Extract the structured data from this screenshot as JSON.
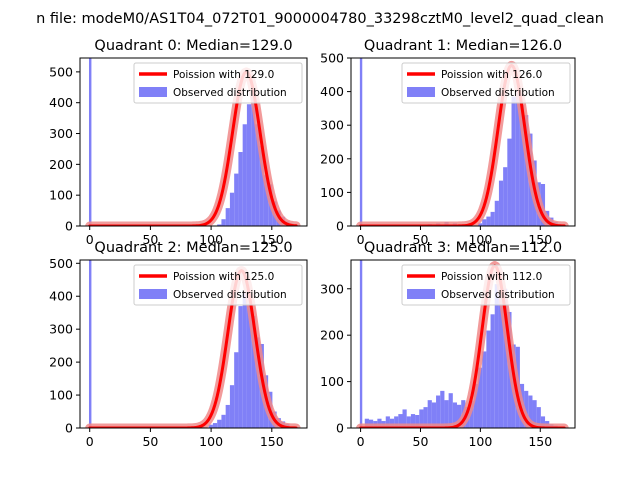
{
  "figure": {
    "suptitle": "n file: modeM0/AS1T04_072T01_9000004780_33298cztM0_level2_quad_clean",
    "colors": {
      "hist": "#8080f7",
      "poisson": "#ff0000",
      "poisson_glow": "#f08a8a",
      "axis": "#000000"
    }
  },
  "chart_data": [
    {
      "type": "bar+line",
      "title": "Quadrant 0: Median=129.0",
      "median": 129.0,
      "poisson_mean": 129.0,
      "legend": [
        "Poission with 129.0",
        "Observed distribution"
      ],
      "legend_loc": "upper right",
      "xlim": [
        -8,
        179
      ],
      "ylim": [
        0,
        545
      ],
      "xticks": [
        0,
        50,
        100,
        150
      ],
      "yticks": [
        0,
        100,
        200,
        300,
        400,
        500
      ],
      "bin_width": 3.5,
      "spike": {
        "x": 0,
        "height": 545
      },
      "bars": [
        [
          105,
          5
        ],
        [
          108.5,
          22
        ],
        [
          112,
          58
        ],
        [
          115.5,
          108
        ],
        [
          119,
          170
        ],
        [
          122.5,
          240
        ],
        [
          126,
          330
        ],
        [
          129.5,
          395
        ],
        [
          133,
          420
        ],
        [
          136.5,
          330
        ],
        [
          140,
          260
        ],
        [
          143.5,
          165
        ],
        [
          147,
          135
        ],
        [
          150.5,
          80
        ],
        [
          154,
          50
        ],
        [
          157.5,
          30
        ],
        [
          161,
          15
        ],
        [
          164.5,
          8
        ],
        [
          168,
          4
        ]
      ],
      "poisson_peak": 500
    },
    {
      "type": "bar+line",
      "title": "Quadrant 1: Median=126.0",
      "median": 126.0,
      "poisson_mean": 126.0,
      "legend": [
        "Poission with 126.0",
        "Observed distribution"
      ],
      "legend_loc": "upper right",
      "xlim": [
        -8,
        179
      ],
      "ylim": [
        0,
        500
      ],
      "xticks": [
        0,
        50,
        100,
        150
      ],
      "yticks": [
        0,
        100,
        200,
        300,
        400,
        500
      ],
      "bin_width": 3.5,
      "spike": {
        "x": 0,
        "height": 500
      },
      "bars": [
        [
          14,
          4
        ],
        [
          56,
          6
        ],
        [
          63,
          8
        ],
        [
          70,
          12
        ],
        [
          77,
          8
        ],
        [
          84,
          5
        ],
        [
          98,
          8
        ],
        [
          101.5,
          20
        ],
        [
          105,
          28
        ],
        [
          108.5,
          42
        ],
        [
          112,
          75
        ],
        [
          115.5,
          135
        ],
        [
          119,
          175
        ],
        [
          122.5,
          260
        ],
        [
          126,
          385
        ],
        [
          129.5,
          400
        ],
        [
          133,
          360
        ],
        [
          136.5,
          330
        ],
        [
          140,
          275
        ],
        [
          143.5,
          195
        ],
        [
          147,
          130
        ],
        [
          150.5,
          125
        ],
        [
          154,
          45
        ],
        [
          157.5,
          25
        ],
        [
          161,
          12
        ],
        [
          164.5,
          6
        ]
      ],
      "poisson_peak": 478
    },
    {
      "type": "bar+line",
      "title": "Quadrant 2: Median=125.0",
      "median": 125.0,
      "poisson_mean": 125.0,
      "legend": [
        "Poission with 125.0",
        "Observed distribution"
      ],
      "legend_loc": "upper right",
      "xlim": [
        -8,
        179
      ],
      "ylim": [
        0,
        510
      ],
      "xticks": [
        0,
        50,
        100,
        150
      ],
      "yticks": [
        0,
        100,
        200,
        300,
        400,
        500
      ],
      "bin_width": 3.5,
      "spike": {
        "x": 0,
        "height": 510
      },
      "bars": [
        [
          70,
          3
        ],
        [
          77,
          4
        ],
        [
          84,
          6
        ],
        [
          91,
          8
        ],
        [
          98,
          10
        ],
        [
          101.5,
          15
        ],
        [
          105,
          25
        ],
        [
          108.5,
          40
        ],
        [
          112,
          70
        ],
        [
          115.5,
          130
        ],
        [
          119,
          230
        ],
        [
          122.5,
          370
        ],
        [
          126,
          410
        ],
        [
          129.5,
          375
        ],
        [
          133,
          340
        ],
        [
          136.5,
          275
        ],
        [
          140,
          255
        ],
        [
          143.5,
          160
        ],
        [
          147,
          110
        ],
        [
          150.5,
          50
        ],
        [
          154,
          30
        ],
        [
          157.5,
          20
        ],
        [
          161,
          12
        ],
        [
          164.5,
          5
        ]
      ],
      "poisson_peak": 478
    },
    {
      "type": "bar+line",
      "title": "Quadrant 3: Median=112.0",
      "median": 112.0,
      "poisson_mean": 112.0,
      "legend": [
        "Poission with 112.0",
        "Observed distribution"
      ],
      "legend_loc": "upper right",
      "xlim": [
        -8,
        179
      ],
      "ylim": [
        0,
        362
      ],
      "xticks": [
        0,
        50,
        100,
        150
      ],
      "yticks": [
        0,
        100,
        200,
        300
      ],
      "bin_width": 3.5,
      "spike": {
        "x": 0,
        "height": 362
      },
      "bars": [
        [
          3.5,
          20
        ],
        [
          7,
          18
        ],
        [
          10.5,
          15
        ],
        [
          14,
          20
        ],
        [
          17.5,
          15
        ],
        [
          21,
          25
        ],
        [
          24.5,
          20
        ],
        [
          28,
          25
        ],
        [
          31.5,
          30
        ],
        [
          35,
          40
        ],
        [
          38.5,
          25
        ],
        [
          42,
          30
        ],
        [
          45.5,
          28
        ],
        [
          49,
          40
        ],
        [
          52.5,
          45
        ],
        [
          56,
          60
        ],
        [
          59.5,
          55
        ],
        [
          63,
          70
        ],
        [
          66.5,
          80
        ],
        [
          70,
          60
        ],
        [
          73.5,
          75
        ],
        [
          77,
          55
        ],
        [
          80.5,
          50
        ],
        [
          84,
          60
        ],
        [
          87.5,
          45
        ],
        [
          91,
          58
        ],
        [
          94.5,
          95
        ],
        [
          98,
          130
        ],
        [
          101.5,
          165
        ],
        [
          105,
          210
        ],
        [
          108.5,
          245
        ],
        [
          112,
          310
        ],
        [
          115.5,
          285
        ],
        [
          119,
          300
        ],
        [
          122.5,
          250
        ],
        [
          126,
          180
        ],
        [
          129.5,
          175
        ],
        [
          133,
          95
        ],
        [
          136.5,
          80
        ],
        [
          140,
          70
        ],
        [
          143.5,
          60
        ],
        [
          147,
          45
        ],
        [
          150.5,
          25
        ],
        [
          154,
          15
        ],
        [
          157.5,
          8
        ],
        [
          161,
          5
        ]
      ],
      "poisson_peak": 350
    }
  ]
}
